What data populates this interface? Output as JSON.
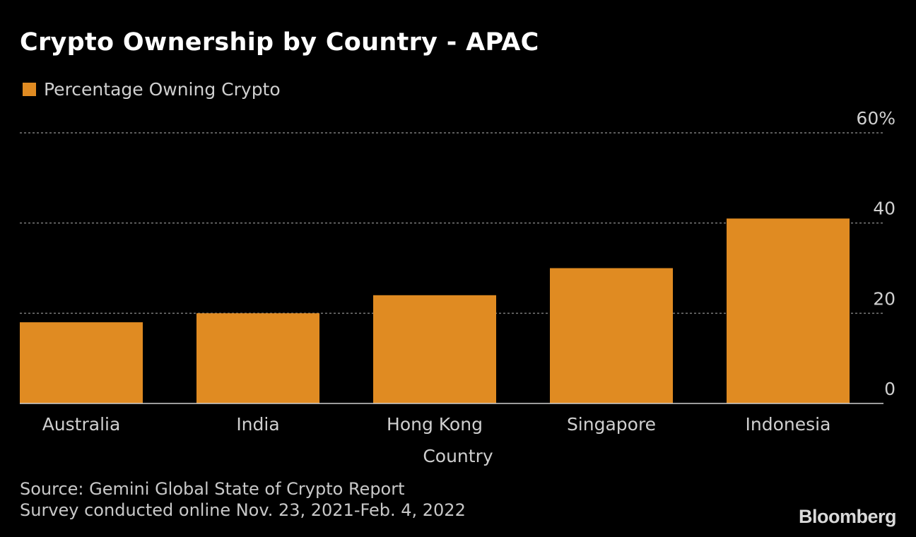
{
  "chart_data": {
    "type": "bar",
    "title": "Crypto Ownership by Country - APAC",
    "xlabel": "Country",
    "ylabel": "",
    "categories": [
      "Australia",
      "India",
      "Hong Kong",
      "Singapore",
      "Indonesia"
    ],
    "series": [
      {
        "name": "Percentage Owning Crypto",
        "values": [
          18,
          20,
          24,
          30,
          41
        ],
        "color": "#e08b22"
      }
    ],
    "ylim": [
      0,
      60
    ],
    "yticks": [
      {
        "value": 0,
        "label": "0"
      },
      {
        "value": 20,
        "label": "20"
      },
      {
        "value": 40,
        "label": "40"
      },
      {
        "value": 60,
        "label": "60%"
      }
    ],
    "grid": true,
    "legend_position": "top-left",
    "y_axis_side": "right"
  },
  "footer": {
    "source": "Source: Gemini Global State of Crypto Report",
    "note": "Survey conducted online Nov. 23, 2021-Feb. 4, 2022"
  },
  "brand": "Bloomberg",
  "colors": {
    "background": "#000000",
    "bar": "#e08b22",
    "grid": "#7a7a7a",
    "text": "#ffffff",
    "muted_text": "#cfcfcf"
  }
}
